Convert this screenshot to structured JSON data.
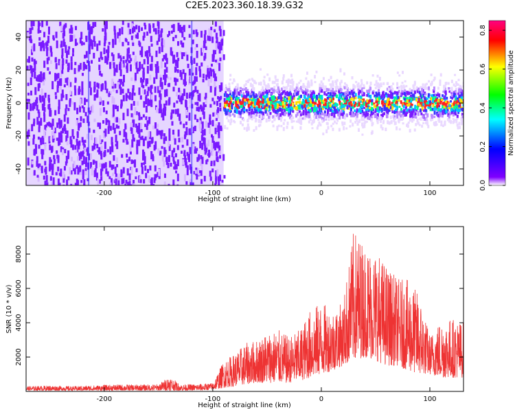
{
  "title": "C2E5.2023.360.18.39.G32",
  "chart_data": [
    {
      "type": "heatmap",
      "panel": "spectrogram",
      "xlabel": "Height of straight line (km)",
      "ylabel": "Frequency (Hz)",
      "xlim": [
        -272,
        131
      ],
      "ylim": [
        -50,
        50
      ],
      "xticks": [
        -200,
        -100,
        0,
        100
      ],
      "yticks": [
        -40,
        -20,
        0,
        20,
        40
      ],
      "colorbar": {
        "label": "Normalized spectral amplitude",
        "range": [
          0.0,
          0.85
        ],
        "ticks": [
          0.0,
          0.2,
          0.4,
          0.6,
          0.8
        ],
        "colormap": [
          "#ffffff",
          "#8000ff",
          "#0000ff",
          "#00ffff",
          "#00ff00",
          "#ffff00",
          "#ff0000",
          "#ff0080"
        ]
      },
      "regions": [
        {
          "x_range": [
            -272,
            -90
          ],
          "frequency_range": [
            -50,
            50
          ],
          "amplitude": 0.04,
          "description": "broadband low amplitude"
        },
        {
          "x_range": [
            -90,
            131
          ],
          "frequency_range": [
            -10,
            10
          ],
          "amplitude_peak": 0.85,
          "description": "narrow band centred on 0 Hz"
        }
      ]
    },
    {
      "type": "line",
      "panel": "snr",
      "xlabel": "Height of straight line (km)",
      "ylabel": "SNR (10 * v/v)",
      "xlim": [
        -272,
        131
      ],
      "ylim": [
        0,
        9600
      ],
      "xticks": [
        -200,
        -100,
        0,
        100
      ],
      "yticks": [
        2000,
        4000,
        6000,
        8000
      ],
      "color": "#ee3333",
      "series": [
        {
          "x": [
            -270,
            -250,
            -230,
            -210,
            -190,
            -170,
            -150,
            -140,
            -130,
            -110,
            -100,
            -90,
            -80,
            -70,
            -60,
            -50,
            -40,
            -30,
            -20,
            -10,
            0,
            10,
            20,
            30,
            40,
            50,
            60,
            70,
            80,
            90,
            100,
            110,
            120,
            130
          ],
          "envelope_high": [
            300,
            350,
            300,
            350,
            400,
            400,
            420,
            900,
            400,
            450,
            500,
            1800,
            2200,
            2800,
            3000,
            3500,
            3600,
            3200,
            3600,
            4800,
            5200,
            4800,
            5200,
            9500,
            8600,
            8300,
            7400,
            6600,
            6500,
            5700,
            3300,
            4200,
            4300,
            4100
          ],
          "envelope_low": [
            50,
            50,
            50,
            50,
            50,
            50,
            50,
            50,
            50,
            50,
            100,
            200,
            300,
            400,
            500,
            500,
            500,
            500,
            600,
            800,
            1000,
            1200,
            1500,
            1800,
            2000,
            1800,
            1500,
            1500,
            1200,
            1000,
            1000,
            800,
            800,
            800
          ]
        }
      ]
    }
  ]
}
